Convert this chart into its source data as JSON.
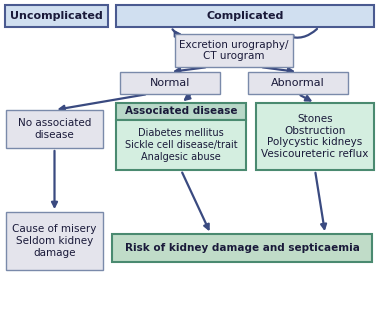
{
  "arrow_color": "#3a4a80",
  "box_styles": {
    "header_blue": {
      "facecolor": "#d0dff0",
      "edgecolor": "#4a5a90",
      "linewidth": 1.5
    },
    "light_gray": {
      "facecolor": "#e4e4ec",
      "edgecolor": "#7a8aaa",
      "linewidth": 1.0
    },
    "green_header": {
      "facecolor": "#b8d8c8",
      "edgecolor": "#4a8a70",
      "linewidth": 1.5
    },
    "green_body": {
      "facecolor": "#d4eee0",
      "edgecolor": "#4a8a70",
      "linewidth": 1.5
    },
    "green_wide": {
      "facecolor": "#c0dcc8",
      "edgecolor": "#4a8a70",
      "linewidth": 1.5
    }
  },
  "title_uncomplicated": "Uncomplicated",
  "title_complicated": "Complicated",
  "excretion_text": "Excretion urography/\nCT urogram",
  "normal_text": "Normal",
  "abnormal_text": "Abnormal",
  "no_assoc_text": "No associated\ndisease",
  "assoc_header": "Associated disease",
  "assoc_body": "Diabetes mellitus\nSickle cell disease/trait\nAnalgesic abuse",
  "stones_text": "Stones\nObstruction\nPolycystic kidneys\nVesicoureteric reflux",
  "misery_text": "Cause of misery\nSeldom kidney\ndamage",
  "risk_text": "Risk of kidney damage and septicaemia"
}
